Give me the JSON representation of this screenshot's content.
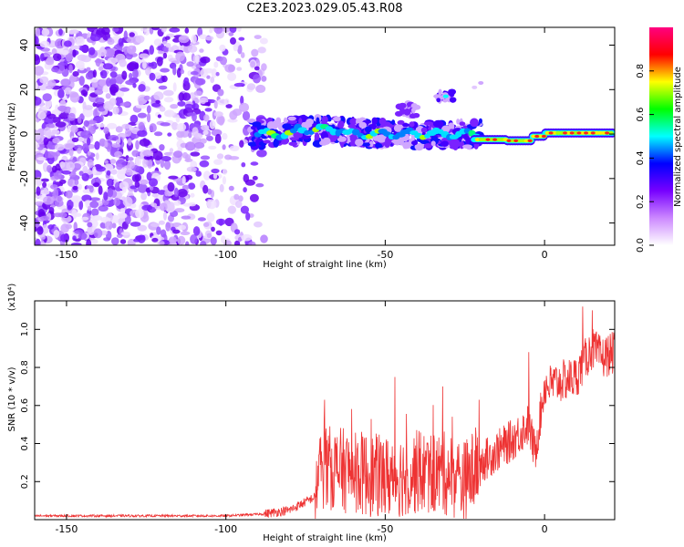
{
  "title": "C2E3.2023.029.05.43.R08",
  "chart_data": [
    {
      "type": "heatmap",
      "xlabel": "Height of straight line (km)",
      "ylabel": "Frequency (Hz)",
      "xlim": [
        -160,
        22
      ],
      "ylim": [
        -50,
        48
      ],
      "xticks": [
        -150,
        -100,
        -50,
        0
      ],
      "yticks": [
        -40,
        -20,
        0,
        20,
        40
      ],
      "colorbar": {
        "label": "Normalized spectral amplitude",
        "range": [
          0,
          1
        ],
        "ticks": [
          "0.0",
          "0.2",
          "0.4",
          "0.6",
          "0.8"
        ],
        "colors": [
          "#ffffff",
          "#cc88ff",
          "#7700ff",
          "#0000ff",
          "#00ffff",
          "#00ff00",
          "#ffff00",
          "#ff0000",
          "#ff0080"
        ]
      },
      "features": [
        {
          "x_range": [
            -160,
            -88
          ],
          "freq_range": [
            -50,
            48
          ],
          "amplitude": 0.15
        },
        {
          "x_range": [
            -92,
            -20
          ],
          "freq_range": [
            -6,
            6
          ],
          "amplitude": 0.4
        },
        {
          "x_range": [
            -20,
            22
          ],
          "freq_range": [
            -3,
            3
          ],
          "amplitude": 0.85
        },
        {
          "x_range": [
            -46,
            -40
          ],
          "freq_range": [
            8,
            14
          ],
          "amplitude": 0.2
        },
        {
          "x_range": [
            -34,
            -28
          ],
          "freq_range": [
            15,
            19
          ],
          "amplitude": 0.3
        }
      ]
    },
    {
      "type": "line",
      "xlabel": "Height of straight line (km)",
      "ylabel": "SNR (10 * v/v)",
      "scale_label": "(x10⁴)",
      "xlim": [
        -160,
        22
      ],
      "ylim": [
        0,
        1.15
      ],
      "xticks": [
        -150,
        -100,
        -50,
        0
      ],
      "yticks": [
        "0.2",
        "0.4",
        "0.6",
        "0.8",
        "1.0"
      ],
      "color": "#ee3333",
      "profile": {
        "x": [
          -160,
          -100,
          -88,
          -80,
          -72,
          -70,
          -60,
          -50,
          -40,
          -30,
          -25,
          -20,
          -10,
          -5,
          -3,
          0,
          10,
          13,
          15,
          18,
          22
        ],
        "y": [
          0.02,
          0.02,
          0.03,
          0.05,
          0.12,
          0.28,
          0.25,
          0.22,
          0.25,
          0.24,
          0.2,
          0.3,
          0.42,
          0.5,
          0.35,
          0.7,
          0.75,
          0.85,
          0.9,
          0.85,
          0.88
        ]
      },
      "peaks": [
        {
          "x": -69,
          "y": 0.63
        },
        {
          "x": -47,
          "y": 0.75
        },
        {
          "x": -32,
          "y": 0.7
        },
        {
          "x": -5,
          "y": 0.88
        },
        {
          "x": 12,
          "y": 1.12
        },
        {
          "x": 15,
          "y": 1.1
        }
      ]
    }
  ]
}
